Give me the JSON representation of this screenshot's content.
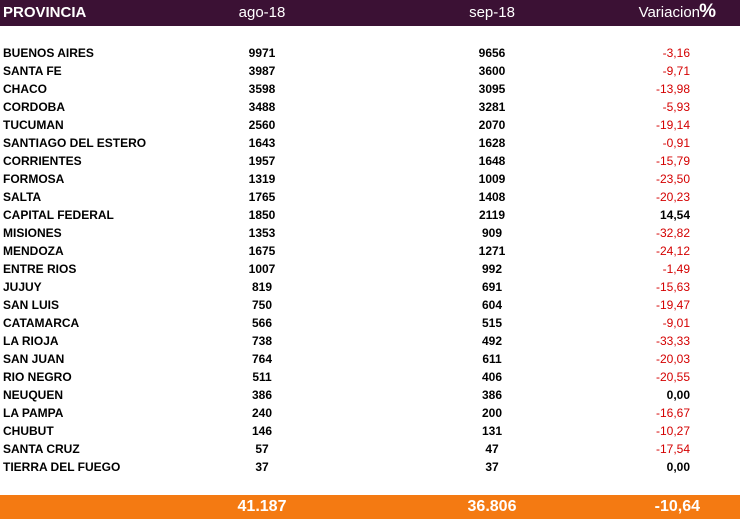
{
  "header": {
    "provincia": "PROVINCIA",
    "ago": "ago-18",
    "sep": "sep-18",
    "variacion": "Variacion",
    "pct": "%"
  },
  "rows": [
    {
      "name": "BUENOS AIRES",
      "ago": "9971",
      "sep": "9656",
      "var": "-3,16"
    },
    {
      "name": "SANTA FE",
      "ago": "3987",
      "sep": "3600",
      "var": "-9,71"
    },
    {
      "name": "CHACO",
      "ago": "3598",
      "sep": "3095",
      "var": "-13,98"
    },
    {
      "name": "CORDOBA",
      "ago": "3488",
      "sep": "3281",
      "var": "-5,93"
    },
    {
      "name": "TUCUMAN",
      "ago": "2560",
      "sep": "2070",
      "var": "-19,14"
    },
    {
      "name": "SANTIAGO DEL ESTERO",
      "ago": "1643",
      "sep": "1628",
      "var": "-0,91"
    },
    {
      "name": "CORRIENTES",
      "ago": "1957",
      "sep": "1648",
      "var": "-15,79"
    },
    {
      "name": "FORMOSA",
      "ago": "1319",
      "sep": "1009",
      "var": "-23,50"
    },
    {
      "name": "SALTA",
      "ago": "1765",
      "sep": "1408",
      "var": "-20,23"
    },
    {
      "name": "CAPITAL FEDERAL",
      "ago": "1850",
      "sep": "2119",
      "var": "14,54"
    },
    {
      "name": "MISIONES",
      "ago": "1353",
      "sep": "909",
      "var": "-32,82"
    },
    {
      "name": "MENDOZA",
      "ago": "1675",
      "sep": "1271",
      "var": "-24,12"
    },
    {
      "name": "ENTRE RIOS",
      "ago": "1007",
      "sep": "992",
      "var": "-1,49"
    },
    {
      "name": "JUJUY",
      "ago": "819",
      "sep": "691",
      "var": "-15,63"
    },
    {
      "name": "SAN LUIS",
      "ago": "750",
      "sep": "604",
      "var": "-19,47"
    },
    {
      "name": "CATAMARCA",
      "ago": "566",
      "sep": "515",
      "var": "-9,01"
    },
    {
      "name": "LA RIOJA",
      "ago": "738",
      "sep": "492",
      "var": "-33,33"
    },
    {
      "name": "SAN JUAN",
      "ago": "764",
      "sep": "611",
      "var": "-20,03"
    },
    {
      "name": "RIO NEGRO",
      "ago": "511",
      "sep": "406",
      "var": "-20,55"
    },
    {
      "name": "NEUQUEN",
      "ago": "386",
      "sep": "386",
      "var": "0,00"
    },
    {
      "name": "LA PAMPA",
      "ago": "240",
      "sep": "200",
      "var": "-16,67"
    },
    {
      "name": "CHUBUT",
      "ago": "146",
      "sep": "131",
      "var": "-10,27"
    },
    {
      "name": "SANTA CRUZ",
      "ago": "57",
      "sep": "47",
      "var": "-17,54"
    },
    {
      "name": "TIERRA DEL FUEGO",
      "ago": "37",
      "sep": "37",
      "var": "0,00"
    }
  ],
  "total": {
    "ago": "41.187",
    "sep": "36.806",
    "var": "-10,64"
  },
  "colors": {
    "header_bg": "#3b1134",
    "total_bg": "#f47a12",
    "negative": "#d40000",
    "positive": "#000000"
  }
}
